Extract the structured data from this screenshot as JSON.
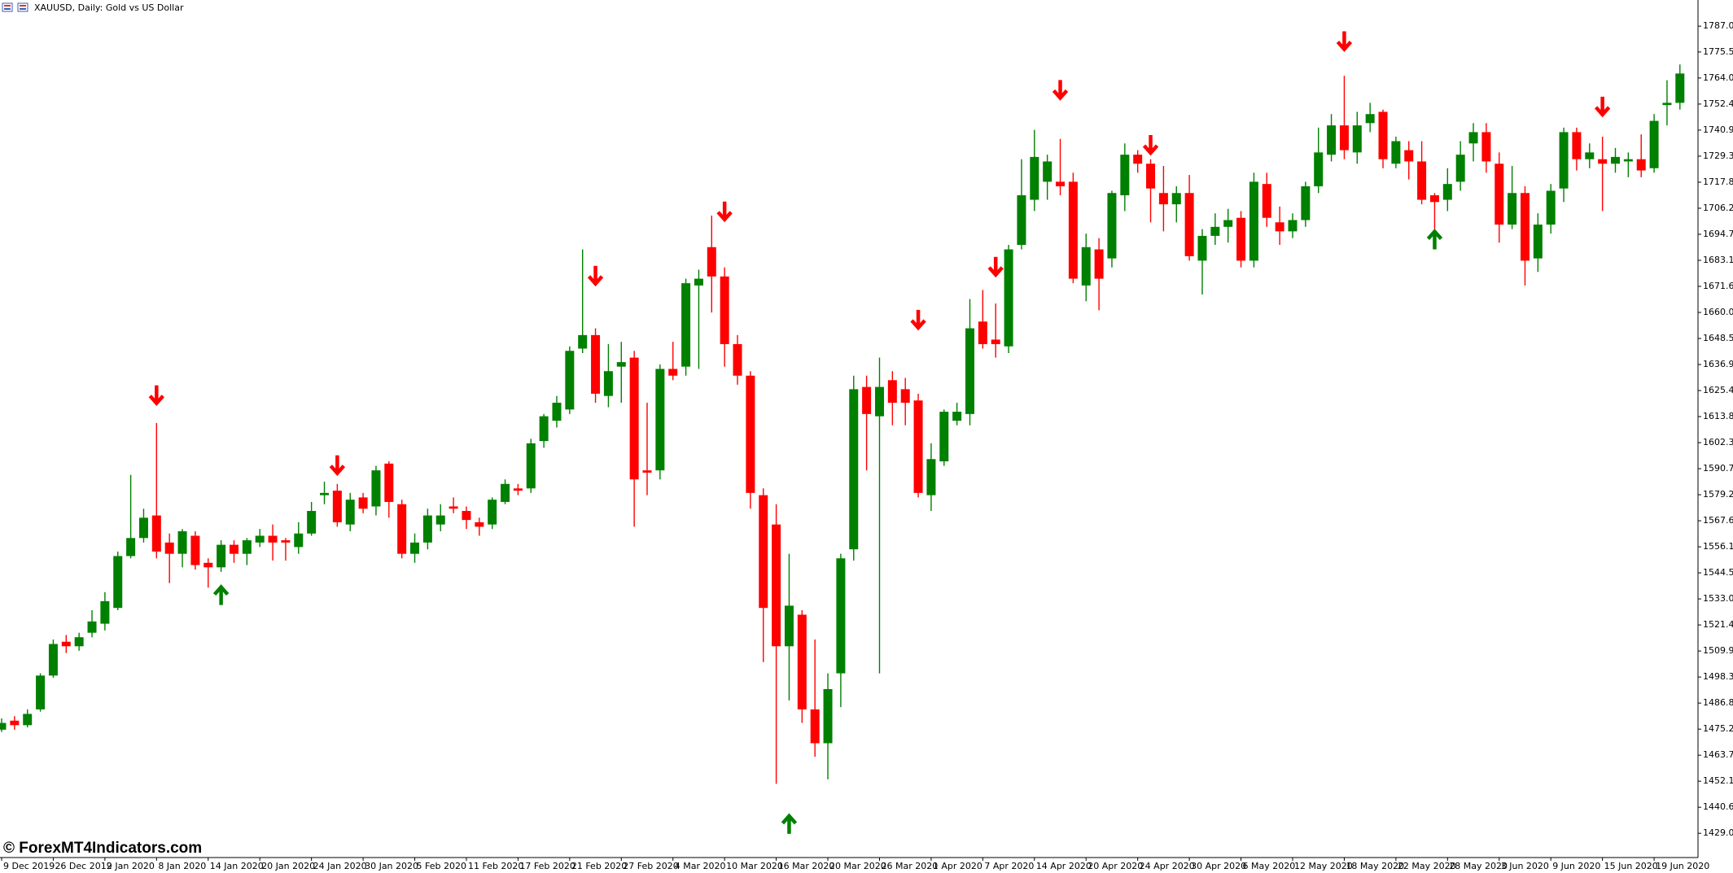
{
  "chart_data": {
    "type": "candlestick",
    "title": "XAUUSD, Daily:  Gold vs US Dollar",
    "watermark": "© ForexMT4Indicators.com",
    "up_color": "#008000",
    "down_color": "#ff0000",
    "categories": [
      "9 Dec 2019",
      null,
      null,
      null,
      "26 Dec 2019",
      null,
      null,
      null,
      "2 Jan 2020",
      null,
      null,
      null,
      "8 Jan 2020",
      null,
      null,
      null,
      "14 Jan 2020",
      null,
      null,
      null,
      "20 Jan 2020",
      null,
      null,
      null,
      "24 Jan 2020",
      null,
      null,
      null,
      "30 Jan 2020",
      null,
      null,
      null,
      "5 Feb 2020",
      null,
      null,
      null,
      "11 Feb 2020",
      null,
      null,
      null,
      "17 Feb 2020",
      null,
      null,
      null,
      "21 Feb 2020",
      null,
      null,
      null,
      "27 Feb 2020",
      null,
      null,
      null,
      "4 Mar 2020",
      null,
      null,
      null,
      "10 Mar 2020",
      null,
      null,
      null,
      "16 Mar 2020",
      null,
      null,
      null,
      "20 Mar 2020",
      null,
      null,
      null,
      "26 Mar 2020",
      null,
      null,
      null,
      "1 Apr 2020",
      null,
      null,
      null,
      "7 Apr 2020",
      null,
      null,
      null,
      "14 Apr 2020",
      null,
      null,
      null,
      "20 Apr 2020",
      null,
      null,
      null,
      "24 Apr 2020",
      null,
      null,
      null,
      "30 Apr 2020",
      null,
      null,
      null,
      "6 May 2020",
      null,
      null,
      null,
      "12 May 2020",
      null,
      null,
      null,
      "18 May 2020",
      null,
      null,
      null,
      "22 May 2020",
      null,
      null,
      null,
      "28 May 2020",
      null,
      null,
      null,
      "3 Jun 2020",
      null,
      null,
      null,
      "9 Jun 2020",
      null,
      null,
      null,
      "15 Jun 2020",
      null,
      null,
      null,
      "19 Jun 2020",
      null,
      null
    ],
    "open": [
      1475,
      1479,
      1477,
      1484,
      1499,
      1514,
      1512,
      1518,
      1522,
      1529,
      1552,
      1560,
      1570,
      1558,
      1553,
      1561,
      1549,
      1547,
      1557,
      1553,
      1558,
      1561,
      1559,
      1556,
      1562,
      1579,
      1581,
      1566,
      1578,
      1574,
      1593,
      1575,
      1553,
      1558,
      1566,
      1574,
      1572,
      1567,
      1566,
      1576,
      1582,
      1582,
      1603,
      1612,
      1617,
      1644,
      1650,
      1623,
      1636,
      1640,
      1590,
      1590,
      1635,
      1636,
      1672,
      1689,
      1676,
      1646,
      1632,
      1579,
      1566,
      1512,
      1526,
      1484,
      1469,
      1500,
      1555,
      1627,
      1614,
      1630,
      1626,
      1621,
      1579,
      1594,
      1612,
      1615,
      1656,
      1648,
      1645,
      1690,
      1710,
      1718,
      1718,
      1718,
      1672,
      1688,
      1684,
      1712,
      1730,
      1726,
      1713,
      1708,
      1713,
      1683,
      1694,
      1698,
      1702,
      1683,
      1717,
      1700,
      1696,
      1701,
      1716,
      1730,
      1743,
      1731,
      1744,
      1749,
      1726,
      1732,
      1727,
      1712,
      1710,
      1718,
      1735,
      1740,
      1726,
      1699,
      1713,
      1684,
      1699,
      1715,
      1740,
      1728,
      1728,
      1726,
      1727,
      1728,
      1724,
      1752,
      1753
    ],
    "high": [
      1480,
      1481,
      1484,
      1500,
      1515,
      1517,
      1518,
      1528,
      1536,
      1554,
      1588,
      1573,
      1611,
      1562,
      1564,
      1563,
      1551,
      1559,
      1559,
      1560,
      1564,
      1566,
      1560,
      1567,
      1576,
      1585,
      1584,
      1580,
      1580,
      1592,
      1594,
      1577,
      1562,
      1573,
      1575,
      1578,
      1574,
      1569,
      1578,
      1586,
      1584,
      1604,
      1615,
      1623,
      1645,
      1688,
      1653,
      1646,
      1647,
      1643,
      1620,
      1637,
      1647,
      1675,
      1679,
      1703,
      1680,
      1650,
      1634,
      1582,
      1575,
      1553,
      1528,
      1515,
      1500,
      1553,
      1632,
      1632,
      1640,
      1634,
      1631,
      1624,
      1602,
      1617,
      1620,
      1666,
      1670,
      1664,
      1690,
      1728,
      1741,
      1730,
      1737,
      1722,
      1695,
      1693,
      1714,
      1735,
      1732,
      1728,
      1725,
      1716,
      1721,
      1697,
      1704,
      1706,
      1705,
      1722,
      1722,
      1707,
      1704,
      1718,
      1742,
      1748,
      1765,
      1749,
      1753,
      1750,
      1738,
      1736,
      1736,
      1713,
      1724,
      1736,
      1744,
      1744,
      1731,
      1725,
      1716,
      1704,
      1717,
      1742,
      1742,
      1735,
      1738,
      1733,
      1731,
      1739,
      1748,
      1763,
      1770
    ],
    "low": [
      1474,
      1475,
      1476,
      1483,
      1498,
      1509,
      1510,
      1516,
      1519,
      1528,
      1551,
      1558,
      1551,
      1540,
      1547,
      1546,
      1538,
      1545,
      1549,
      1548,
      1556,
      1550,
      1550,
      1553,
      1561,
      1575,
      1565,
      1563,
      1571,
      1570,
      1569,
      1551,
      1549,
      1555,
      1563,
      1571,
      1564,
      1561,
      1564,
      1575,
      1579,
      1580,
      1600,
      1609,
      1615,
      1642,
      1620,
      1618,
      1620,
      1565,
      1579,
      1586,
      1630,
      1632,
      1635,
      1660,
      1636,
      1628,
      1573,
      1505,
      1451,
      1488,
      1478,
      1463,
      1453,
      1485,
      1550,
      1590,
      1500,
      1610,
      1610,
      1578,
      1572,
      1592,
      1610,
      1610,
      1644,
      1640,
      1642,
      1688,
      1705,
      1710,
      1712,
      1673,
      1665,
      1661,
      1680,
      1705,
      1722,
      1700,
      1696,
      1700,
      1683,
      1668,
      1690,
      1691,
      1680,
      1680,
      1698,
      1690,
      1693,
      1698,
      1713,
      1727,
      1728,
      1726,
      1740,
      1724,
      1724,
      1719,
      1708,
      1697,
      1705,
      1714,
      1727,
      1722,
      1691,
      1697,
      1672,
      1678,
      1695,
      1709,
      1723,
      1724,
      1705,
      1722,
      1720,
      1720,
      1722,
      1743,
      1750
    ],
    "close": [
      1478,
      1477,
      1482,
      1499,
      1513,
      1512,
      1516,
      1523,
      1532,
      1552,
      1560,
      1569,
      1554,
      1553,
      1563,
      1548,
      1547,
      1557,
      1553,
      1559,
      1561,
      1558,
      1558,
      1562,
      1572,
      1580,
      1567,
      1577,
      1573,
      1590,
      1576,
      1553,
      1558,
      1570,
      1570,
      1573,
      1568,
      1565,
      1577,
      1584,
      1581,
      1602,
      1614,
      1620,
      1643,
      1650,
      1624,
      1634,
      1638,
      1586,
      1589,
      1635,
      1632,
      1673,
      1675,
      1676,
      1646,
      1632,
      1580,
      1529,
      1512,
      1530,
      1484,
      1469,
      1493,
      1551,
      1626,
      1615,
      1627,
      1620,
      1620,
      1580,
      1595,
      1616,
      1616,
      1653,
      1646,
      1646,
      1688,
      1712,
      1729,
      1727,
      1716,
      1675,
      1689,
      1675,
      1713,
      1730,
      1726,
      1715,
      1708,
      1713,
      1685,
      1694,
      1698,
      1701,
      1683,
      1718,
      1702,
      1696,
      1701,
      1716,
      1731,
      1743,
      1732,
      1743,
      1748,
      1728,
      1736,
      1727,
      1710,
      1709,
      1717,
      1730,
      1740,
      1727,
      1699,
      1713,
      1683,
      1699,
      1714,
      1740,
      1728,
      1731,
      1726,
      1729,
      1728,
      1723,
      1745,
      1753,
      1766
    ],
    "sell_arrows": [
      null,
      null,
      null,
      null,
      null,
      null,
      null,
      null,
      null,
      null,
      null,
      null,
      1623,
      null,
      null,
      null,
      null,
      null,
      null,
      null,
      null,
      null,
      null,
      null,
      null,
      null,
      1592,
      null,
      null,
      null,
      null,
      null,
      null,
      null,
      null,
      null,
      null,
      null,
      null,
      null,
      null,
      null,
      null,
      null,
      null,
      null,
      1676,
      null,
      null,
      null,
      null,
      null,
      null,
      null,
      null,
      null,
      1704.5,
      null,
      null,
      null,
      null,
      null,
      null,
      null,
      null,
      null,
      null,
      null,
      null,
      null,
      null,
      1656.5,
      null,
      null,
      null,
      null,
      null,
      1680,
      null,
      null,
      null,
      null,
      1758.4,
      null,
      null,
      null,
      null,
      null,
      null,
      1734,
      null,
      null,
      null,
      null,
      null,
      null,
      null,
      null,
      null,
      null,
      null,
      null,
      null,
      null,
      1780,
      null,
      null,
      null,
      null,
      null,
      null,
      null,
      null,
      null,
      null,
      null,
      null,
      null,
      null,
      null,
      null,
      null,
      null,
      null,
      1751,
      null,
      null,
      null,
      null,
      null,
      null
    ],
    "buy_arrows": [
      null,
      null,
      null,
      null,
      null,
      null,
      null,
      null,
      null,
      null,
      null,
      null,
      null,
      null,
      null,
      null,
      null,
      1535,
      null,
      null,
      null,
      null,
      null,
      null,
      null,
      null,
      null,
      null,
      null,
      null,
      null,
      null,
      null,
      null,
      null,
      null,
      null,
      null,
      null,
      null,
      null,
      null,
      null,
      null,
      null,
      null,
      null,
      null,
      null,
      null,
      null,
      null,
      null,
      null,
      null,
      null,
      null,
      null,
      null,
      null,
      null,
      1433.5,
      null,
      null,
      null,
      null,
      null,
      null,
      null,
      null,
      null,
      null,
      null,
      null,
      null,
      null,
      null,
      null,
      null,
      null,
      null,
      null,
      null,
      null,
      null,
      null,
      null,
      null,
      null,
      null,
      null,
      null,
      null,
      null,
      null,
      null,
      null,
      null,
      null,
      null,
      null,
      null,
      null,
      null,
      null,
      null,
      null,
      null,
      null,
      null,
      null,
      1692.7,
      null,
      null,
      null,
      null,
      null,
      null,
      null,
      null,
      null,
      null,
      null,
      null,
      null,
      null,
      null,
      null,
      null,
      null,
      null
    ],
    "ylim": [
      1418.3,
      1798.6
    ],
    "yticks": [
      1429.05,
      {
        "value": 1440.6,
        "label": "1440.60"
      },
      1452.15,
      {
        "value": 1463.7,
        "label": "1463.70"
      },
      1475.25,
      {
        "value": 1486.8,
        "label": "1486.80"
      },
      1498.35,
      {
        "value": 1509.9,
        "label": "1509.90"
      },
      1521.45,
      {
        "value": 1533,
        "label": "1533.00"
      },
      1544.55,
      {
        "value": 1556.1,
        "label": "1556.10"
      },
      1567.65,
      {
        "value": 1579.2,
        "label": "1579.20"
      },
      1590.75,
      {
        "value": 1602.3,
        "label": "1602.30"
      },
      1613.85,
      {
        "value": 1625.4,
        "label": "1625.40"
      },
      1636.95,
      {
        "value": 1648.5,
        "label": "1648.50"
      },
      1660.05,
      {
        "value": 1671.6,
        "label": "1671.60"
      },
      1683.15,
      {
        "value": 1694.7,
        "label": "1694.70"
      },
      1706.25,
      {
        "value": 1717.8,
        "label": "1717.80"
      },
      1729.35,
      {
        "value": 1740.9,
        "label": "1740.90"
      },
      1752.45,
      {
        "value": 1764,
        "label": "1764.00"
      },
      1775.55,
      {
        "value": 1787,
        "label": "1787.00"
      }
    ]
  }
}
